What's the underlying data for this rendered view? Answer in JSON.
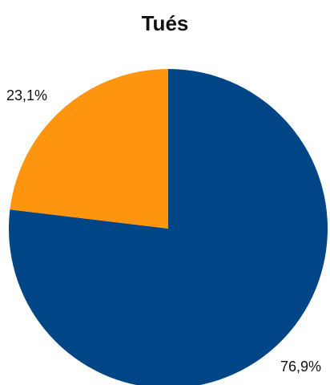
{
  "chart_data": {
    "type": "pie",
    "title": "Tués",
    "slices": [
      {
        "value": 76.9,
        "label": "76,9%",
        "color": "#004586"
      },
      {
        "value": 23.1,
        "label": "23,1%",
        "color": "#ff950e"
      }
    ],
    "legend": false
  }
}
